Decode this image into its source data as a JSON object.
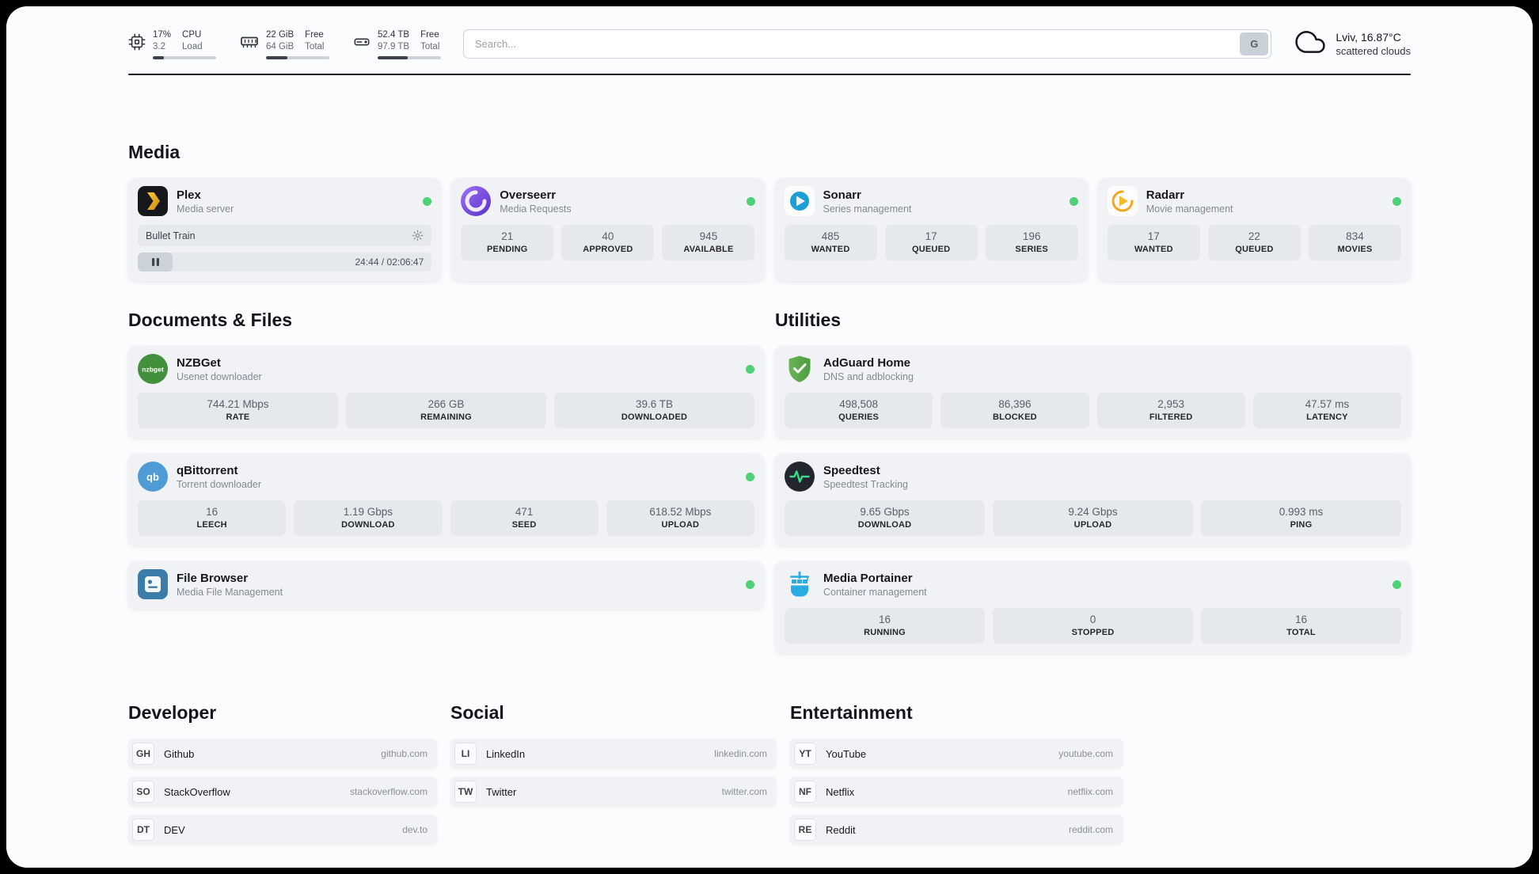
{
  "colors": {
    "status_online": "#4fd178",
    "page_background": "#fbfcfd"
  },
  "header": {
    "cpu": {
      "icon": "cpu-chip-icon",
      "usage": "17%",
      "load": "3.2",
      "label_top": "CPU",
      "label_bottom": "Load",
      "bar_percent": 17
    },
    "ram": {
      "icon": "ram-icon",
      "free": "22 GiB",
      "total": "64 GiB",
      "label_top": "Free",
      "label_bottom": "Total",
      "bar_percent": 34
    },
    "disk": {
      "icon": "hard-drive-icon",
      "free": "52.4 TB",
      "total": "97.9 TB",
      "label_top": "Free",
      "label_bottom": "Total",
      "bar_percent": 47
    },
    "search": {
      "placeholder": "Search...",
      "button_label": "G"
    },
    "weather": {
      "icon": "cloud-icon",
      "location": "Lviv, 16.87°C",
      "condition": "scattered clouds"
    }
  },
  "sections": {
    "media": {
      "title": "Media",
      "cards": [
        {
          "name": "Plex",
          "subtitle": "Media server",
          "online": true,
          "now_playing": "Bullet Train",
          "time": "24:44 / 02:06:47"
        },
        {
          "name": "Overseerr",
          "subtitle": "Media Requests",
          "online": true,
          "stats": [
            {
              "value": "21",
              "label": "PENDING"
            },
            {
              "value": "40",
              "label": "APPROVED"
            },
            {
              "value": "945",
              "label": "AVAILABLE"
            }
          ]
        },
        {
          "name": "Sonarr",
          "subtitle": "Series management",
          "online": true,
          "stats": [
            {
              "value": "485",
              "label": "WANTED"
            },
            {
              "value": "17",
              "label": "QUEUED"
            },
            {
              "value": "196",
              "label": "SERIES"
            }
          ]
        },
        {
          "name": "Radarr",
          "subtitle": "Movie management",
          "online": true,
          "stats": [
            {
              "value": "17",
              "label": "WANTED"
            },
            {
              "value": "22",
              "label": "QUEUED"
            },
            {
              "value": "834",
              "label": "MOVIES"
            }
          ]
        }
      ]
    },
    "documents": {
      "title": "Documents & Files",
      "cards": [
        {
          "name": "NZBGet",
          "subtitle": "Usenet downloader",
          "online": true,
          "icon_text": "nzbget",
          "stats": [
            {
              "value": "744.21 Mbps",
              "label": "RATE"
            },
            {
              "value": "266 GB",
              "label": "REMAINING"
            },
            {
              "value": "39.6 TB",
              "label": "DOWNLOADED"
            }
          ]
        },
        {
          "name": "qBittorrent",
          "subtitle": "Torrent downloader",
          "online": true,
          "icon_text": "qb",
          "stats": [
            {
              "value": "16",
              "label": "LEECH"
            },
            {
              "value": "1.19 Gbps",
              "label": "DOWNLOAD"
            },
            {
              "value": "471",
              "label": "SEED"
            },
            {
              "value": "618.52 Mbps",
              "label": "UPLOAD"
            }
          ]
        },
        {
          "name": "File Browser",
          "subtitle": "Media File Management",
          "online": true
        }
      ]
    },
    "utilities": {
      "title": "Utilities",
      "cards": [
        {
          "name": "AdGuard Home",
          "subtitle": "DNS and adblocking",
          "stats": [
            {
              "value": "498,508",
              "label": "QUERIES"
            },
            {
              "value": "86,396",
              "label": "BLOCKED"
            },
            {
              "value": "2,953",
              "label": "FILTERED"
            },
            {
              "value": "47.57 ms",
              "label": "LATENCY"
            }
          ]
        },
        {
          "name": "Speedtest",
          "subtitle": "Speedtest Tracking",
          "stats": [
            {
              "value": "9.65 Gbps",
              "label": "DOWNLOAD"
            },
            {
              "value": "9.24 Gbps",
              "label": "UPLOAD"
            },
            {
              "value": "0.993 ms",
              "label": "PING"
            }
          ]
        },
        {
          "name": "Media Portainer",
          "subtitle": "Container management",
          "online": true,
          "stats": [
            {
              "value": "16",
              "label": "RUNNING"
            },
            {
              "value": "0",
              "label": "STOPPED"
            },
            {
              "value": "16",
              "label": "TOTAL"
            }
          ]
        }
      ]
    }
  },
  "bookmarks": [
    {
      "title": "Developer",
      "items": [
        {
          "abbr": "GH",
          "name": "Github",
          "url": "github.com"
        },
        {
          "abbr": "SO",
          "name": "StackOverflow",
          "url": "stackoverflow.com"
        },
        {
          "abbr": "DT",
          "name": "DEV",
          "url": "dev.to"
        }
      ]
    },
    {
      "title": "Social",
      "items": [
        {
          "abbr": "LI",
          "name": "LinkedIn",
          "url": "linkedin.com"
        },
        {
          "abbr": "TW",
          "name": "Twitter",
          "url": "twitter.com"
        }
      ]
    },
    {
      "title": "Entertainment",
      "items": [
        {
          "abbr": "YT",
          "name": "YouTube",
          "url": "youtube.com"
        },
        {
          "abbr": "NF",
          "name": "Netflix",
          "url": "netflix.com"
        },
        {
          "abbr": "RE",
          "name": "Reddit",
          "url": "reddit.com"
        }
      ]
    }
  ]
}
